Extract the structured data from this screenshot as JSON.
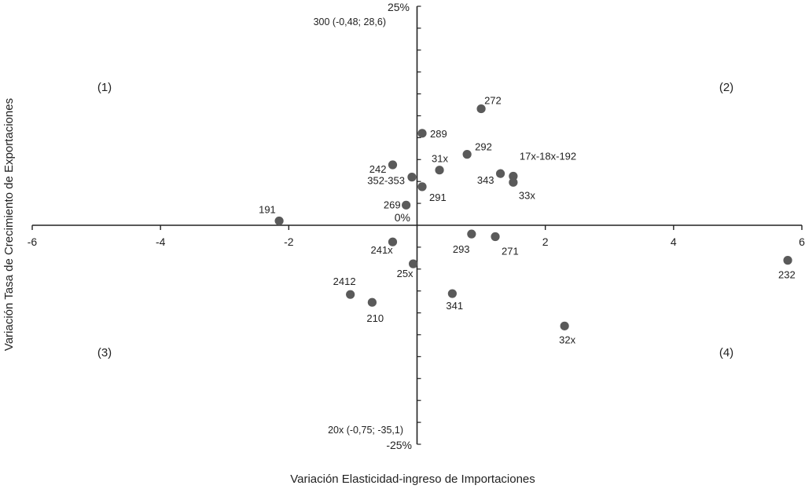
{
  "chart_data": {
    "type": "scatter",
    "xlabel": "Variación Elasticidad-ingreso de Importaciones",
    "ylabel": "Variación Tasa de Crecimiento de Exportaciones",
    "xlim": [
      -6,
      6
    ],
    "ylim": [
      -25,
      25
    ],
    "x_ticks": [
      -6,
      -4,
      -2,
      2,
      4,
      6
    ],
    "x_tick_labels": [
      "-6",
      "-4",
      "-2",
      "2",
      "4",
      "6"
    ],
    "y_axis_labels": {
      "top": "25%",
      "origin": "0%",
      "bottom": "-25%"
    },
    "quadrants": [
      "(1)",
      "(2)",
      "(3)",
      "(4)"
    ],
    "outlier_notes": [
      {
        "label": "300 (-0,48; 28,6)",
        "position": "top"
      },
      {
        "label": "20x (-0,75; -35,1)",
        "position": "bottom"
      }
    ],
    "points": [
      {
        "label": "272",
        "x": 1.0,
        "y": 13.3
      },
      {
        "label": "289",
        "x": 0.08,
        "y": 10.5
      },
      {
        "label": "292",
        "x": 0.78,
        "y": 8.1
      },
      {
        "label": "242",
        "x": -0.38,
        "y": 6.9
      },
      {
        "label": "31x",
        "x": 0.35,
        "y": 6.3
      },
      {
        "label": "17x-18x-192",
        "x": 1.5,
        "y": 5.6
      },
      {
        "label": "343",
        "x": 1.3,
        "y": 5.9
      },
      {
        "label": "352-353",
        "x": -0.08,
        "y": 5.5
      },
      {
        "label": "33x",
        "x": 1.5,
        "y": 4.9
      },
      {
        "label": "291",
        "x": 0.08,
        "y": 4.4
      },
      {
        "label": "269",
        "x": -0.17,
        "y": 2.3
      },
      {
        "label": "191",
        "x": -2.15,
        "y": 0.5
      },
      {
        "label": "293",
        "x": 0.85,
        "y": -1.0
      },
      {
        "label": "271",
        "x": 1.22,
        "y": -1.3
      },
      {
        "label": "241x",
        "x": -0.38,
        "y": -1.9
      },
      {
        "label": "25x",
        "x": -0.06,
        "y": -4.4
      },
      {
        "label": "232",
        "x": 5.78,
        "y": -4.0
      },
      {
        "label": "2412",
        "x": -1.04,
        "y": -7.9
      },
      {
        "label": "341",
        "x": 0.55,
        "y": -7.8
      },
      {
        "label": "210",
        "x": -0.7,
        "y": -8.8
      },
      {
        "label": "32x",
        "x": 2.3,
        "y": -11.5
      }
    ],
    "point_color": "#5a5a5a"
  }
}
